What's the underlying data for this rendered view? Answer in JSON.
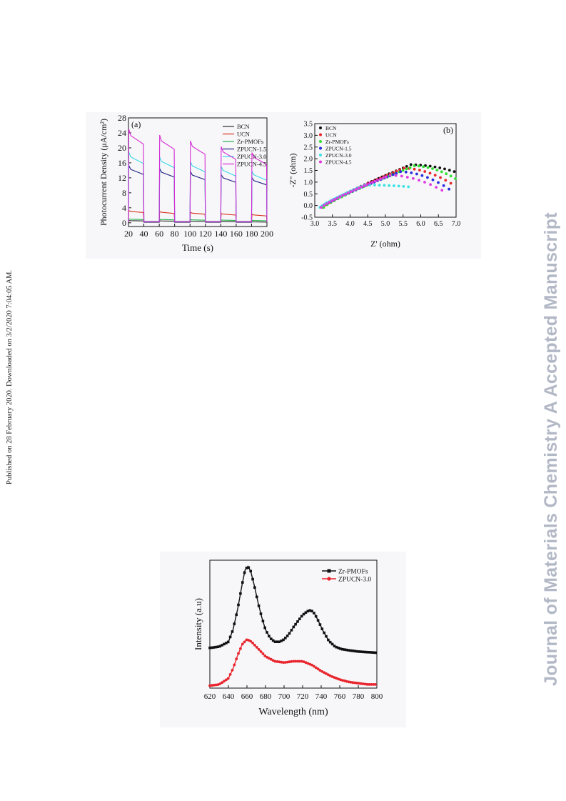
{
  "side_note": "Published on 28 February 2020. Downloaded on 3/2/2020 7:04:05 AM.",
  "watermark": "Journal of Materials Chemistry A Accepted Manuscript",
  "chart_data": [
    {
      "type": "line",
      "panel_label": "(a)",
      "xlabel": "Time (s)",
      "ylabel": "Photocurrent Density (μA/cm²)",
      "xlim": [
        20,
        200
      ],
      "ylim": [
        -1,
        28
      ],
      "x_ticks": [
        20,
        40,
        60,
        80,
        100,
        120,
        140,
        160,
        180,
        200
      ],
      "y_ticks": [
        0,
        4,
        8,
        12,
        16,
        20,
        24,
        28
      ],
      "legend_position": "top-right",
      "series": [
        {
          "name": "BCN",
          "color": "#2b2b2b",
          "on_level": 0.6,
          "on_drift": 0.1,
          "off_level": 0.1
        },
        {
          "name": "UCN",
          "color": "#d9301e",
          "on_level": 3.2,
          "on_drift": 1.8,
          "off_level": 0.3
        },
        {
          "name": "Zr-PMOFs",
          "color": "#22b14c",
          "on_level": 1.0,
          "on_drift": 0.5,
          "off_level": 0.2
        },
        {
          "name": "ZPUCN-1.5",
          "color": "#1c1c80",
          "on_level": 15.0,
          "on_drift": 10.6,
          "off_level": 0.3
        },
        {
          "name": "ZPUCN-3.0",
          "color": "#33d6e6",
          "on_level": 18.5,
          "on_drift": 11.5,
          "off_level": 0.2
        },
        {
          "name": "ZPUCN-4.5",
          "color": "#d42bd4",
          "on_level": 24.5,
          "on_drift": 16.0,
          "off_level": 0.2
        }
      ]
    },
    {
      "type": "scatter",
      "panel_label": "(b)",
      "xlabel": "Z' (ohm)",
      "ylabel": "-Z'' (ohm)",
      "xlim": [
        3.0,
        7.0
      ],
      "ylim": [
        -0.5,
        3.5
      ],
      "x_ticks": [
        "3.0",
        "3.5",
        "4.0",
        "4.5",
        "5.0",
        "5.5",
        "6.0",
        "6.5",
        "7.0"
      ],
      "y_ticks": [
        "-0.5",
        "0.0",
        "0.5",
        "1.0",
        "1.5",
        "2.0",
        "2.5",
        "3.0",
        "3.5"
      ],
      "legend_position": "top-left",
      "series": [
        {
          "name": "BCN",
          "color": "#111111",
          "x_start": 3.22,
          "x_peak": 5.9,
          "y_peak": 1.75,
          "x_end": 6.95,
          "y_end": 1.45
        },
        {
          "name": "UCN",
          "color": "#e8242c",
          "x_start": 3.22,
          "x_peak": 5.7,
          "y_peak": 1.6,
          "x_end": 6.85,
          "y_end": 0.95
        },
        {
          "name": "Zr-PMOFs",
          "color": "#2fe22f",
          "x_start": 3.25,
          "x_peak": 6.0,
          "y_peak": 1.7,
          "x_end": 6.98,
          "y_end": 1.15
        },
        {
          "name": "ZPUCN-1.5",
          "color": "#2a2ae0",
          "x_start": 3.18,
          "x_peak": 5.6,
          "y_peak": 1.45,
          "x_end": 6.8,
          "y_end": 0.7
        },
        {
          "name": "ZPUCN-3.0",
          "color": "#38e3e3",
          "x_start": 3.15,
          "x_peak": 4.6,
          "y_peak": 0.88,
          "x_end": 5.65,
          "y_end": 0.8
        },
        {
          "name": "ZPUCN-4.5",
          "color": "#e03ae0",
          "x_start": 3.18,
          "x_peak": 5.3,
          "y_peak": 1.3,
          "x_end": 6.6,
          "y_end": 0.65
        }
      ]
    },
    {
      "type": "line",
      "xlabel": "Wavelength (nm)",
      "ylabel": "Intensity (a.u)",
      "xlim": [
        620,
        800
      ],
      "x_ticks": [
        620,
        640,
        660,
        680,
        700,
        720,
        740,
        760,
        780,
        800
      ],
      "legend_position": "top-right",
      "series": [
        {
          "name": "Zr-PMOFs",
          "color": "#111111",
          "marker": "square",
          "x": [
            620,
            630,
            640,
            645,
            650,
            655,
            658,
            661,
            664,
            668,
            672,
            676,
            680,
            685,
            690,
            695,
            700,
            705,
            710,
            715,
            720,
            725,
            729,
            733,
            737,
            742,
            748,
            755,
            762,
            770,
            780,
            790,
            800
          ],
          "y": [
            0.33,
            0.34,
            0.38,
            0.48,
            0.65,
            0.86,
            0.97,
            1.0,
            0.96,
            0.84,
            0.7,
            0.58,
            0.48,
            0.41,
            0.38,
            0.38,
            0.4,
            0.44,
            0.5,
            0.55,
            0.6,
            0.63,
            0.64,
            0.61,
            0.55,
            0.47,
            0.39,
            0.34,
            0.32,
            0.31,
            0.3,
            0.295,
            0.29
          ]
        },
        {
          "name": "ZPUCN-3.0",
          "color": "#e8242c",
          "marker": "circle",
          "x": [
            620,
            630,
            640,
            645,
            650,
            655,
            660,
            665,
            670,
            675,
            680,
            690,
            700,
            710,
            720,
            730,
            740,
            750,
            760,
            770,
            780,
            790,
            800
          ],
          "y": [
            0.02,
            0.03,
            0.08,
            0.16,
            0.27,
            0.36,
            0.4,
            0.38,
            0.34,
            0.3,
            0.26,
            0.22,
            0.21,
            0.22,
            0.22,
            0.19,
            0.14,
            0.1,
            0.07,
            0.05,
            0.04,
            0.03,
            0.03
          ]
        }
      ]
    }
  ]
}
